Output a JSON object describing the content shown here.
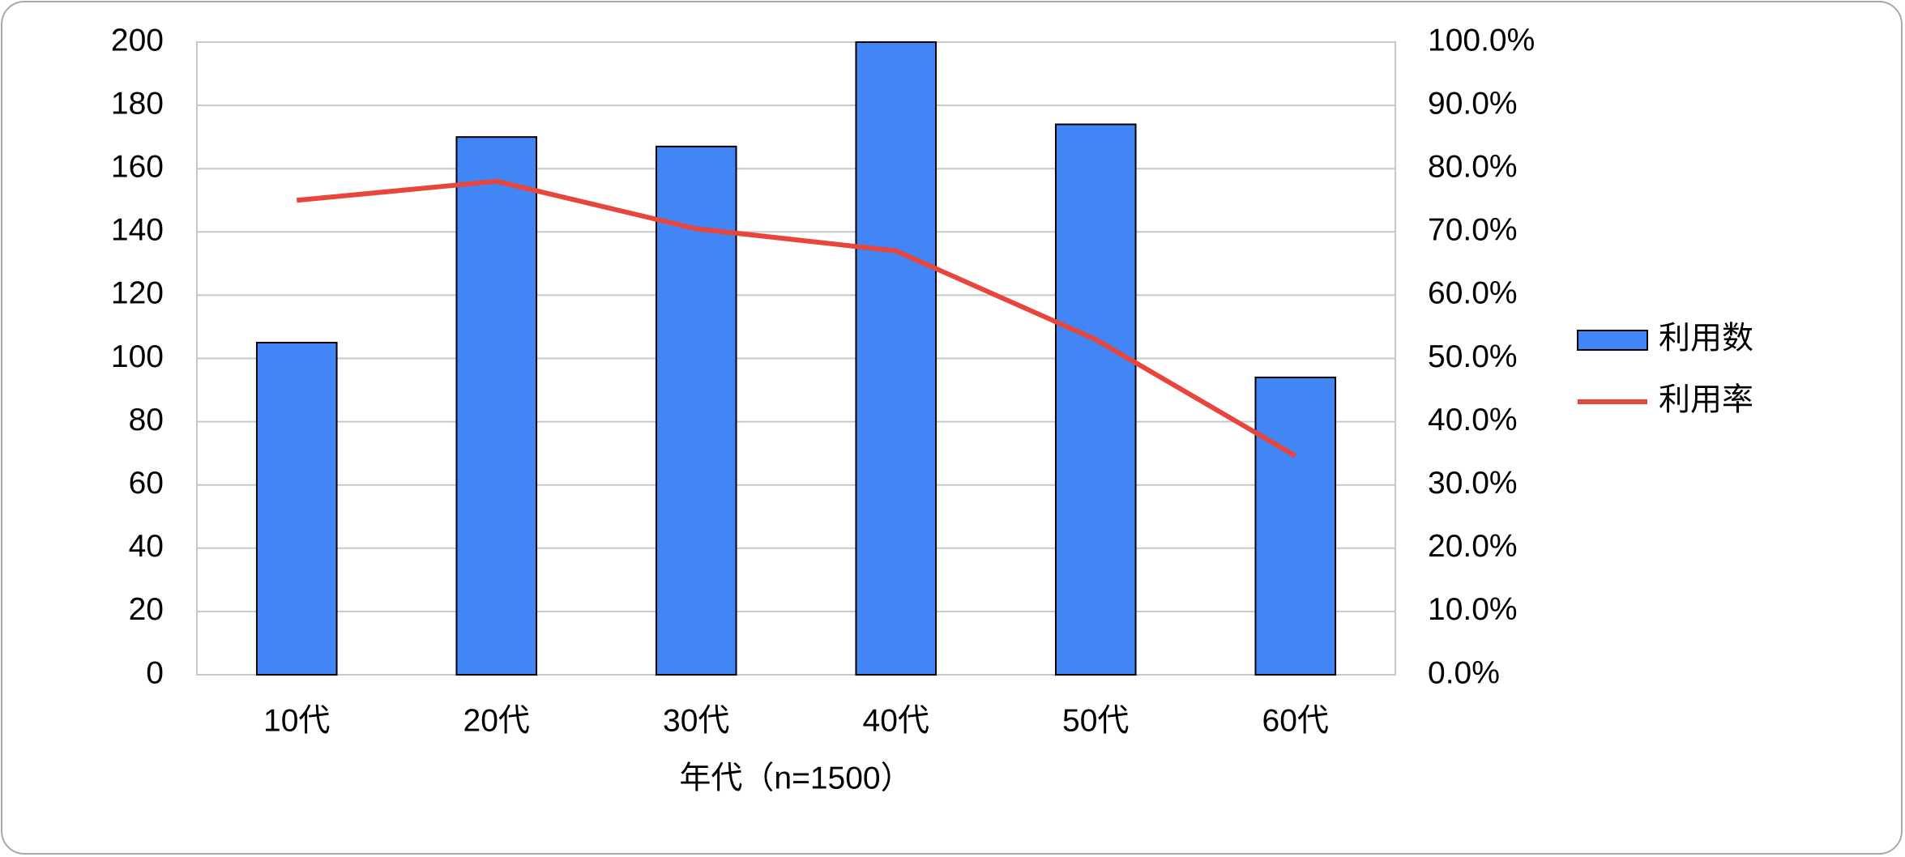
{
  "chart_data": {
    "type": "bar",
    "x_label": "年代（n=1500）",
    "categories": [
      "10代",
      "20代",
      "30代",
      "40代",
      "50代",
      "60代"
    ],
    "series": [
      {
        "name": "利用数",
        "type": "bar",
        "color": "#4285f4",
        "values": [
          105,
          170,
          167,
          200,
          174,
          94
        ]
      },
      {
        "name": "利用率",
        "type": "line",
        "axis": "y2",
        "color": "#e8453c",
        "values": [
          75,
          78,
          70.5,
          67,
          53,
          34.6
        ]
      }
    ],
    "ylim": [
      0,
      200
    ],
    "yticks": [
      0,
      20,
      40,
      60,
      80,
      100,
      120,
      140,
      160,
      180,
      200
    ],
    "y2lim": [
      0,
      100
    ],
    "y2ticks": [
      {
        "value": 0,
        "label": "0.0%"
      },
      {
        "value": 10,
        "label": "10.0%"
      },
      {
        "value": 20,
        "label": "20.0%"
      },
      {
        "value": 30,
        "label": "30.0%"
      },
      {
        "value": 40,
        "label": "40.0%"
      },
      {
        "value": 50,
        "label": "50.0%"
      },
      {
        "value": 60,
        "label": "60.0%"
      },
      {
        "value": 70,
        "label": "70.0%"
      },
      {
        "value": 80,
        "label": "80.0%"
      },
      {
        "value": 90,
        "label": "90.0%"
      },
      {
        "value": 100,
        "label": "100.0%"
      }
    ],
    "grid": true,
    "legend": "right"
  }
}
